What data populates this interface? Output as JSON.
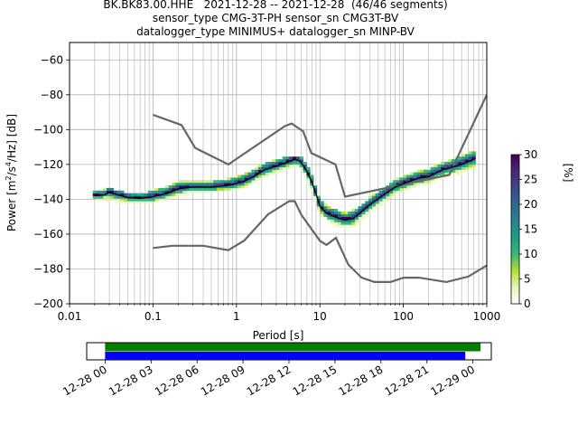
{
  "figure": {
    "title_lines": [
      "BK.BK83.00.HHE   2021-12-28 -- 2021-12-28  (46/46 segments)",
      "sensor_type CMG-3T-PH sensor_sn CMG3T-BV",
      "datalogger_type MINIMUS+ datalogger_sn MINP-BV"
    ]
  },
  "chart_data": [
    {
      "type": "heatmap",
      "title": "",
      "xlabel": "Period [s]",
      "ylabel_parts": [
        "Power [m",
        "2",
        "/s",
        "4",
        "/Hz] [dB]"
      ],
      "xscale": "log",
      "xlim": [
        0.01,
        1000
      ],
      "ylim": [
        -200,
        -50
      ],
      "x_ticks": [
        0.01,
        0.1,
        1,
        10,
        100,
        1000
      ],
      "x_tick_labels": [
        "0.01",
        "0.1",
        "1",
        "10",
        "100",
        "1000"
      ],
      "y_ticks": [
        -200,
        -180,
        -160,
        -140,
        -120,
        -100,
        -80,
        -60
      ],
      "y_tick_labels": [
        "−200",
        "−180",
        "−160",
        "−140",
        "−120",
        "−100",
        "−80",
        "−60"
      ],
      "grid": true,
      "colorbar": {
        "label": "[%]",
        "range": [
          0,
          30
        ],
        "ticks": [
          0,
          5,
          10,
          15,
          20,
          25,
          30
        ],
        "tick_labels": [
          "0",
          "5",
          "10",
          "15",
          "20",
          "25",
          "30"
        ],
        "colormap": [
          "#ffffff",
          "#e6f5b8",
          "#b5de2b",
          "#35b779",
          "#1f9e89",
          "#26828e",
          "#31688e",
          "#3e4989",
          "#482878",
          "#440154"
        ]
      },
      "density_colors": [
        "#e6f5b8",
        "#b5de2b",
        "#35b779",
        "#1f9e89",
        "#26828e",
        "#3e4989",
        "#440154"
      ],
      "noise_models": [
        {
          "name": "NHNM",
          "color": "#666666",
          "points": [
            [
              0.1,
              -91.5
            ],
            [
              0.22,
              -97.4
            ],
            [
              0.32,
              -110.5
            ],
            [
              0.8,
              -120
            ],
            [
              3.8,
              -98
            ],
            [
              4.6,
              -96.5
            ],
            [
              6.3,
              -101
            ],
            [
              7.9,
              -113.5
            ],
            [
              15.4,
              -120
            ],
            [
              20,
              -138.5
            ],
            [
              354.8,
              -126
            ],
            [
              10000,
              -80
            ]
          ]
        },
        {
          "name": "NLNM",
          "color": "#666666",
          "points": [
            [
              0.1,
              -168
            ],
            [
              0.17,
              -166.7
            ],
            [
              0.4,
              -166.7
            ],
            [
              0.8,
              -169.2
            ],
            [
              1.24,
              -163.7
            ],
            [
              2.4,
              -148.6
            ],
            [
              4.3,
              -141.1
            ],
            [
              5,
              -141.1
            ],
            [
              6,
              -149
            ],
            [
              10,
              -163.8
            ],
            [
              12,
              -166.2
            ],
            [
              15.6,
              -162.1
            ],
            [
              21.9,
              -177.5
            ],
            [
              31.6,
              -185
            ],
            [
              45,
              -187.5
            ],
            [
              70,
              -187.5
            ],
            [
              101,
              -185
            ],
            [
              154,
              -185
            ],
            [
              328,
              -187.5
            ],
            [
              600,
              -184.4
            ],
            [
              1000,
              -178
            ]
          ]
        }
      ],
      "mode_line": {
        "color": "#000000",
        "points": [
          [
            0.02,
            -138
          ],
          [
            0.026,
            -137.5
          ],
          [
            0.03,
            -136
          ],
          [
            0.035,
            -137
          ],
          [
            0.05,
            -139
          ],
          [
            0.07,
            -139.5
          ],
          [
            0.1,
            -138.5
          ],
          [
            0.15,
            -136.5
          ],
          [
            0.2,
            -134
          ],
          [
            0.3,
            -133
          ],
          [
            0.5,
            -133
          ],
          [
            0.8,
            -132
          ],
          [
            1.2,
            -130
          ],
          [
            1.6,
            -127
          ],
          [
            2.2,
            -123
          ],
          [
            3,
            -121
          ],
          [
            4,
            -119
          ],
          [
            5,
            -117
          ],
          [
            5.8,
            -118
          ],
          [
            7,
            -124
          ],
          [
            8,
            -130
          ],
          [
            9,
            -137
          ],
          [
            10,
            -144
          ],
          [
            12,
            -148
          ],
          [
            15,
            -150
          ],
          [
            20,
            -152
          ],
          [
            25,
            -151
          ],
          [
            30,
            -148
          ],
          [
            40,
            -143
          ],
          [
            60,
            -137
          ],
          [
            80,
            -133
          ],
          [
            100,
            -131
          ],
          [
            150,
            -128
          ],
          [
            200,
            -127
          ],
          [
            300,
            -123
          ],
          [
            500,
            -120
          ],
          [
            700,
            -117
          ]
        ]
      },
      "density_band": [
        [
          0.02,
          -139.5,
          -135.5
        ],
        [
          0.03,
          -140,
          -134.5
        ],
        [
          0.05,
          -142,
          -137
        ],
        [
          0.07,
          -142,
          -137.5
        ],
        [
          0.1,
          -141,
          -135
        ],
        [
          0.15,
          -140,
          -133
        ],
        [
          0.2,
          -137.5,
          -130
        ],
        [
          0.3,
          -136,
          -130
        ],
        [
          0.5,
          -135,
          -130
        ],
        [
          0.8,
          -134.5,
          -128.5
        ],
        [
          1.2,
          -133,
          -126
        ],
        [
          1.6,
          -130,
          -123.5
        ],
        [
          2.2,
          -127,
          -120
        ],
        [
          3,
          -124.5,
          -118
        ],
        [
          4,
          -122.5,
          -116.5
        ],
        [
          5,
          -121,
          -115.5
        ],
        [
          5.8,
          -121,
          -116
        ],
        [
          7,
          -128,
          -120.5
        ],
        [
          8,
          -134,
          -126
        ],
        [
          9,
          -141,
          -133
        ],
        [
          10,
          -148,
          -140
        ],
        [
          12,
          -152,
          -144.5
        ],
        [
          15,
          -154.5,
          -146.5
        ],
        [
          20,
          -156,
          -148
        ],
        [
          25,
          -155,
          -146.5
        ],
        [
          30,
          -152,
          -144.5
        ],
        [
          40,
          -147,
          -139.5
        ],
        [
          60,
          -141,
          -133.5
        ],
        [
          80,
          -137,
          -129.5
        ],
        [
          100,
          -135,
          -127
        ],
        [
          150,
          -132,
          -124.5
        ],
        [
          200,
          -131,
          -123
        ],
        [
          300,
          -127,
          -119.5
        ],
        [
          500,
          -124.5,
          -115.5
        ],
        [
          700,
          -122,
          -113
        ]
      ]
    },
    {
      "type": "timeline",
      "title": "",
      "x_tick_labels": [
        "12-28 00",
        "12-28 03",
        "12-28 06",
        "12-28 09",
        "12-28 12",
        "12-28 15",
        "12-28 18",
        "12-28 21",
        "12-29 00"
      ],
      "x_ticks_hours": [
        0,
        3,
        6,
        9,
        12,
        15,
        18,
        21,
        24
      ],
      "xlim_hours": [
        -1.2,
        25.2
      ],
      "bars": [
        {
          "color": "#008000",
          "start_hour": 0,
          "end_hour": 24.5
        },
        {
          "color": "#0000ff",
          "start_hour": 0,
          "end_hour": 23.5
        }
      ]
    }
  ]
}
